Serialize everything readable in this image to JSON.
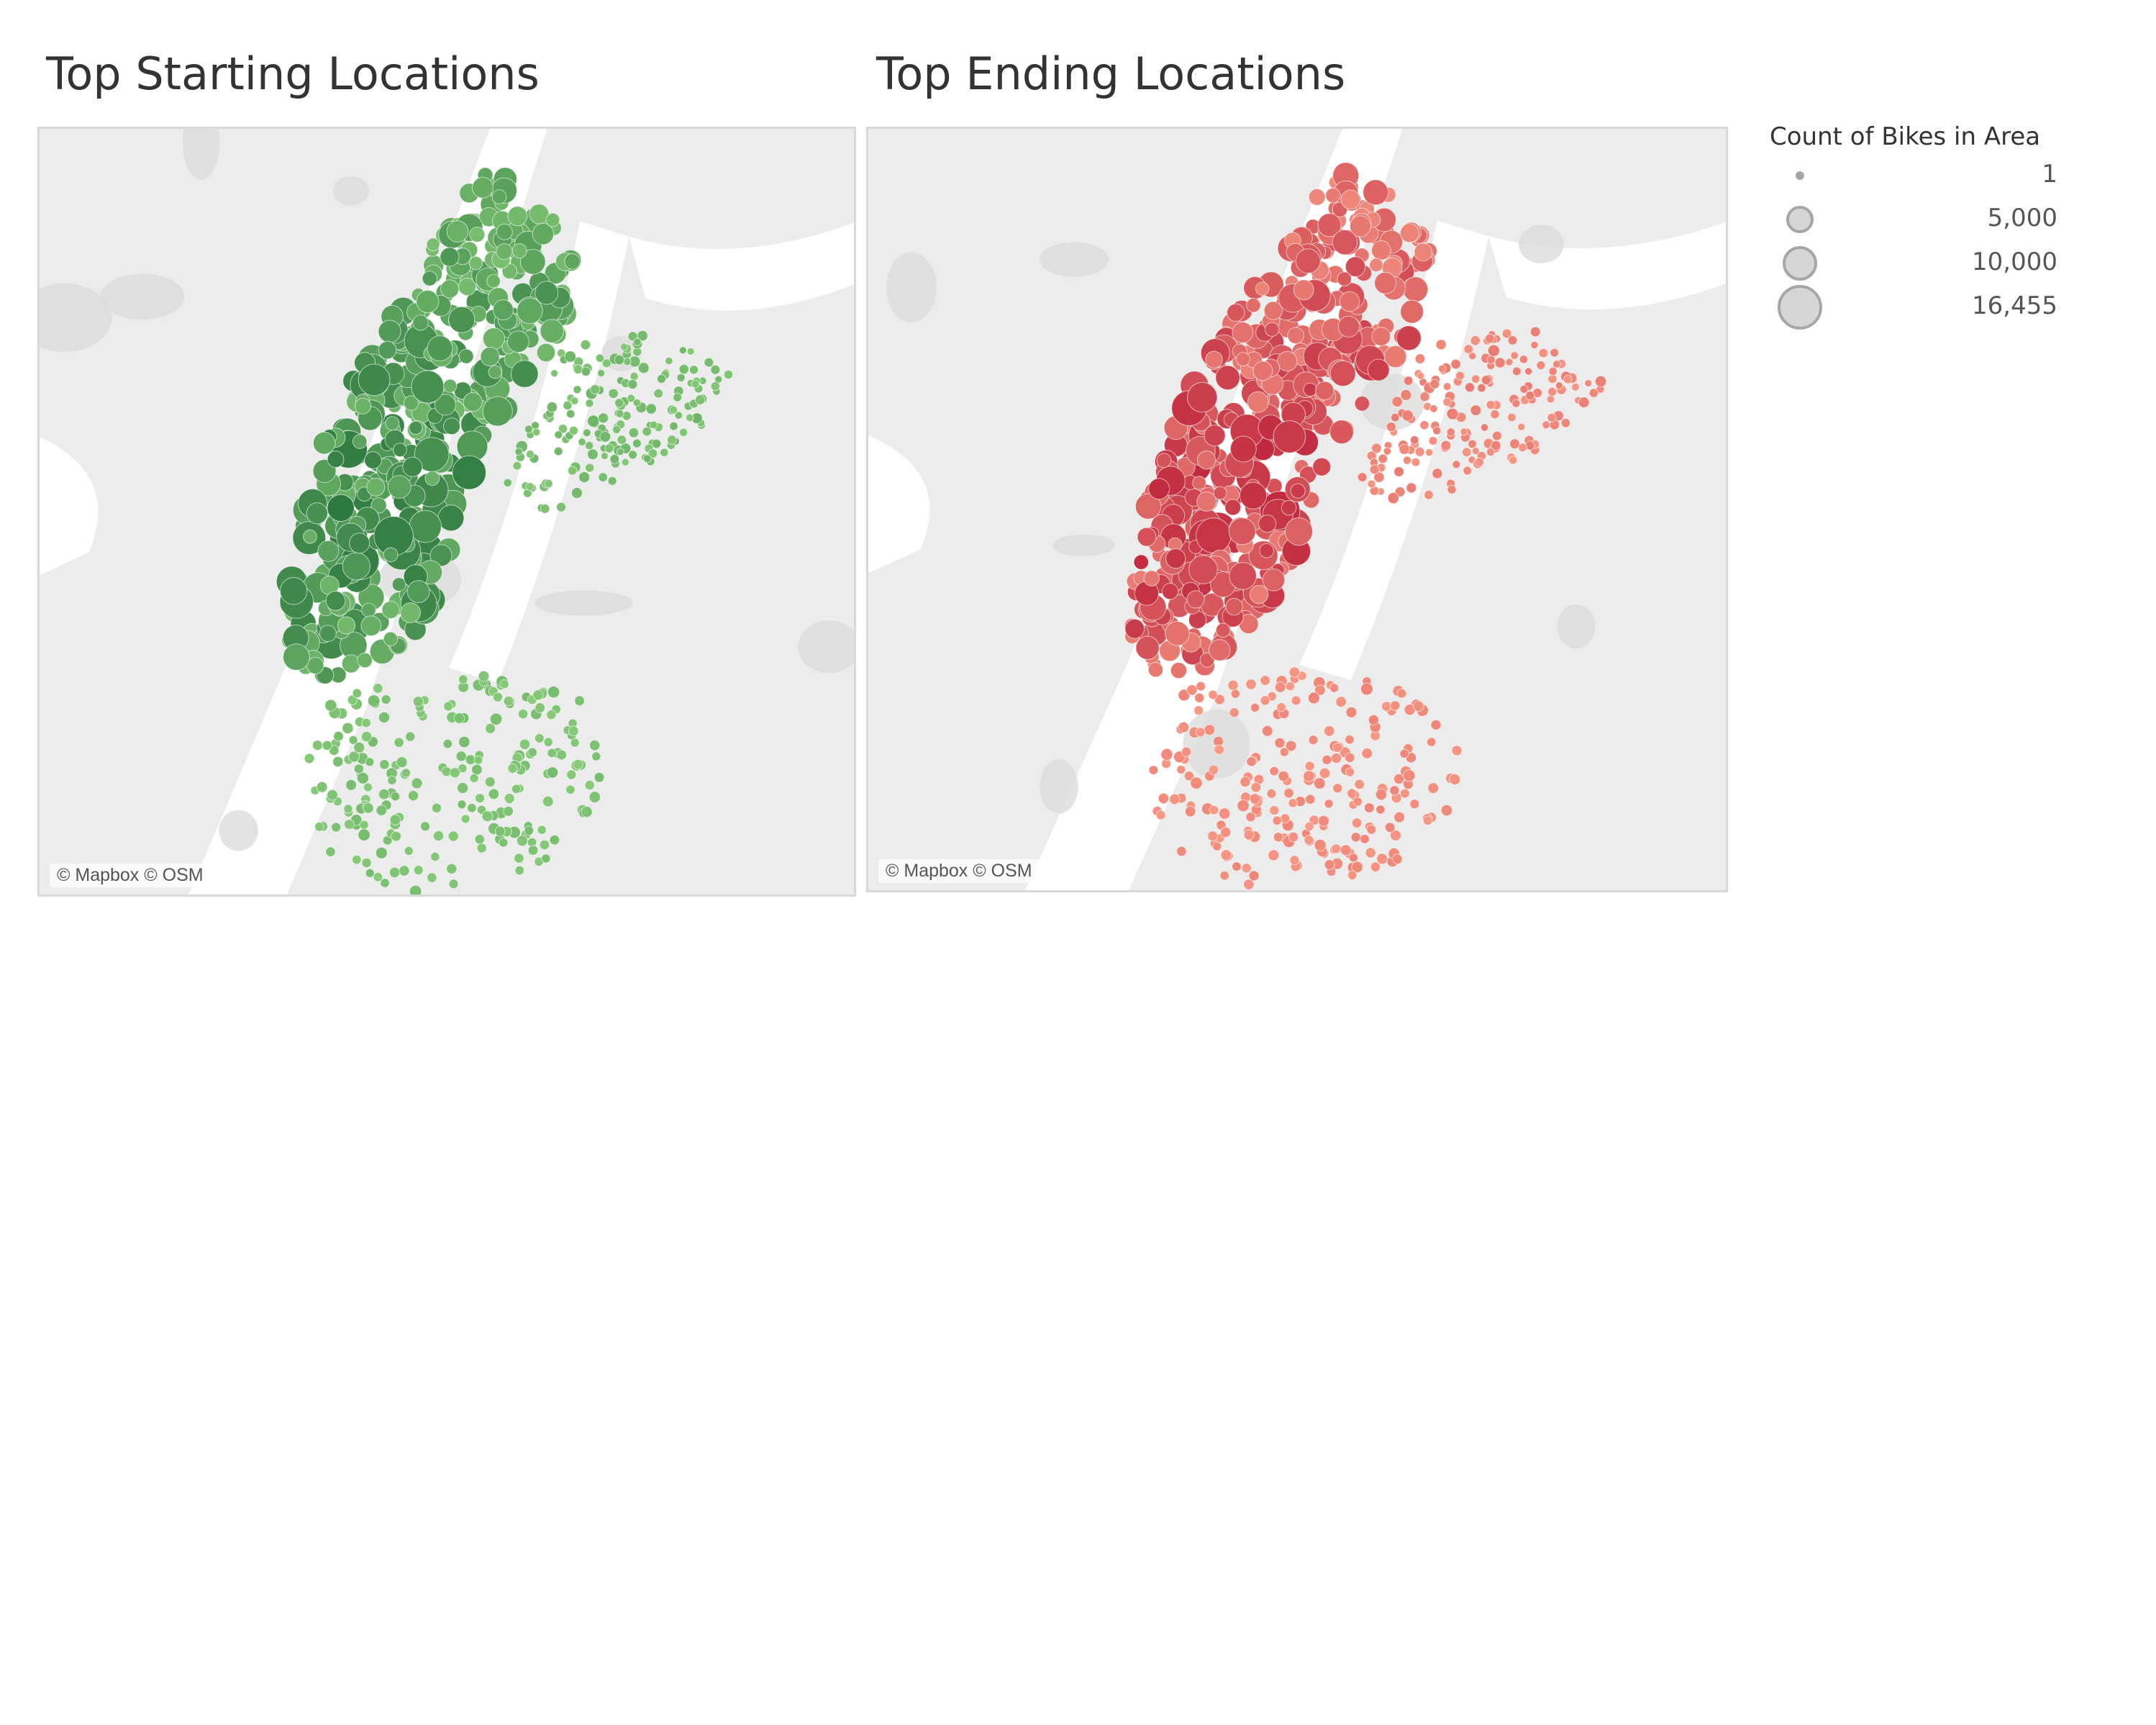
{
  "maps": [
    {
      "title": "Top Starting Locations",
      "attribution": "© Mapbox © OSM",
      "palette": "green"
    },
    {
      "title": "Top Ending Locations",
      "attribution": "© Mapbox © OSM",
      "palette": "red"
    }
  ],
  "legend": {
    "title": "Count of Bikes in Area",
    "items": [
      {
        "label": "1",
        "value": 1
      },
      {
        "label": "5,000",
        "value": 5000
      },
      {
        "label": "10,000",
        "value": 10000
      },
      {
        "label": "16,455",
        "value": 16455
      }
    ]
  },
  "colors": {
    "map_land": "#ececec",
    "map_water": "#ffffff",
    "map_park": "#dcdcdc",
    "green_light": "#8fd17e",
    "green_dark": "#1d6b35",
    "red_light": "#fca48c",
    "red_dark": "#b30f2e",
    "legend_fill": "#d6d6d6",
    "legend_stroke": "#a6a6a6"
  }
}
